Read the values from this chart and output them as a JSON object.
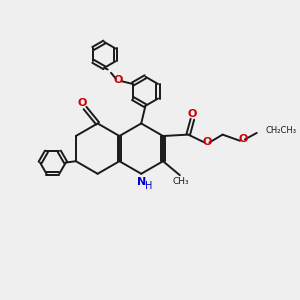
{
  "bg_color": "#efefef",
  "bond_color": "#1a1a1a",
  "nitrogen_color": "#0000cc",
  "oxygen_color": "#cc0000",
  "line_width": 1.4,
  "fig_size": [
    3.0,
    3.0
  ],
  "dpi": 100,
  "xlim": [
    0,
    10
  ],
  "ylim": [
    0,
    10
  ]
}
